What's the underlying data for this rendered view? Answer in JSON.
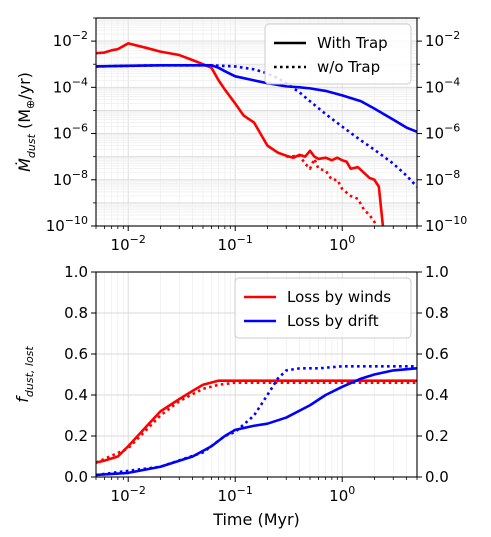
{
  "chart_data": [
    {
      "type": "line",
      "ylabel_main": "Ṁ",
      "ylabel_sub": "dust",
      "ylabel_unit": " (M",
      "ylabel_unit_sub": "⊕",
      "ylabel_tail": "/yr)",
      "xlabel": "",
      "x_scale": "log",
      "y_scale": "log",
      "xlim": [
        0.005,
        5
      ],
      "ylim": [
        1e-10,
        0.1
      ],
      "x_ticks": [
        {
          "value": 0.01,
          "base": "10",
          "exp": "−2"
        },
        {
          "value": 0.1,
          "base": "10",
          "exp": "−1"
        },
        {
          "value": 1,
          "base": "10",
          "exp": "0"
        }
      ],
      "y_ticks": [
        {
          "value": 0.01,
          "base": "10",
          "exp": "−2"
        },
        {
          "value": 0.0001,
          "base": "10",
          "exp": "−4"
        },
        {
          "value": 1e-06,
          "base": "10",
          "exp": "−6"
        },
        {
          "value": 1e-08,
          "base": "10",
          "exp": "−8"
        },
        {
          "value": 1e-10,
          "base": "10",
          "exp": "−10"
        }
      ],
      "grid": true,
      "legend_position": "top-right",
      "legend": [
        {
          "label": "With Trap",
          "style": "solid",
          "color": "#000000"
        },
        {
          "label": "w/o Trap",
          "style": "dotted",
          "color": "#000000"
        }
      ],
      "series": [
        {
          "color": "#ff0000",
          "style": "solid",
          "points": [
            [
              0.005,
              0.003
            ],
            [
              0.006,
              0.0032
            ],
            [
              0.007,
              0.004
            ],
            [
              0.008,
              0.0045
            ],
            [
              0.01,
              0.008
            ],
            [
              0.015,
              0.005
            ],
            [
              0.02,
              0.0035
            ],
            [
              0.03,
              0.0025
            ],
            [
              0.04,
              0.0015
            ],
            [
              0.05,
              0.001
            ],
            [
              0.06,
              0.0007
            ],
            [
              0.07,
              0.0002
            ],
            [
              0.08,
              8e-05
            ],
            [
              0.1,
              2e-05
            ],
            [
              0.12,
              6e-06
            ],
            [
              0.15,
              3e-06
            ],
            [
              0.2,
              3e-07
            ],
            [
              0.25,
              1.5e-07
            ],
            [
              0.3,
              1.1e-07
            ],
            [
              0.35,
              9e-08
            ],
            [
              0.4,
              1.2e-07
            ],
            [
              0.45,
              1e-07
            ],
            [
              0.5,
              1.8e-07
            ],
            [
              0.55,
              1e-07
            ],
            [
              0.6,
              8e-08
            ],
            [
              0.7,
              9e-08
            ],
            [
              0.8,
              7e-08
            ],
            [
              0.9,
              9e-08
            ],
            [
              1.0,
              7e-08
            ],
            [
              1.1,
              6e-08
            ],
            [
              1.2,
              3e-08
            ],
            [
              1.4,
              3.5e-08
            ],
            [
              1.6,
              2e-08
            ],
            [
              1.8,
              1.2e-08
            ],
            [
              2.0,
              1e-08
            ],
            [
              2.2,
              5e-09
            ],
            [
              2.4,
              1e-10
            ]
          ]
        },
        {
          "color": "#ff0000",
          "style": "dotted",
          "points": [
            [
              0.3,
              1e-07
            ],
            [
              0.4,
              1.1e-07
            ],
            [
              0.45,
              5e-08
            ],
            [
              0.5,
              3e-08
            ],
            [
              0.55,
              8e-08
            ],
            [
              0.6,
              3e-08
            ],
            [
              0.7,
              2.5e-08
            ],
            [
              0.8,
              1e-08
            ],
            [
              0.9,
              1e-08
            ],
            [
              1.0,
              4e-09
            ],
            [
              1.2,
              2e-09
            ],
            [
              1.4,
              1.5e-09
            ],
            [
              1.6,
              5e-10
            ],
            [
              1.8,
              3e-10
            ],
            [
              2.0,
              1.5e-10
            ],
            [
              2.1,
              1e-10
            ]
          ]
        },
        {
          "color": "#0000ff",
          "style": "solid",
          "points": [
            [
              0.005,
              0.0008
            ],
            [
              0.01,
              0.00085
            ],
            [
              0.02,
              0.0009
            ],
            [
              0.04,
              0.0009
            ],
            [
              0.06,
              0.0009
            ],
            [
              0.07,
              0.0007
            ],
            [
              0.08,
              0.0005
            ],
            [
              0.1,
              0.0003
            ],
            [
              0.15,
              0.0002
            ],
            [
              0.2,
              0.00015
            ],
            [
              0.3,
              0.00011
            ],
            [
              0.4,
              0.0001
            ],
            [
              0.5,
              9e-05
            ],
            [
              0.7,
              7e-05
            ],
            [
              1.0,
              4.5e-05
            ],
            [
              1.5,
              2.5e-05
            ],
            [
              2.0,
              1.2e-05
            ],
            [
              3.0,
              4e-06
            ],
            [
              4.0,
              1.8e-06
            ],
            [
              5.0,
              1.2e-06
            ]
          ]
        },
        {
          "color": "#0000ff",
          "style": "dotted",
          "points": [
            [
              0.005,
              0.0008
            ],
            [
              0.02,
              0.0009
            ],
            [
              0.06,
              0.0009
            ],
            [
              0.1,
              0.0008
            ],
            [
              0.15,
              0.0006
            ],
            [
              0.2,
              0.0004
            ],
            [
              0.25,
              0.00025
            ],
            [
              0.3,
              0.00015
            ],
            [
              0.4,
              6e-05
            ],
            [
              0.5,
              2.5e-05
            ],
            [
              0.7,
              7e-06
            ],
            [
              1.0,
              2e-06
            ],
            [
              1.5,
              5e-07
            ],
            [
              2.0,
              2e-07
            ],
            [
              3.0,
              5e-08
            ],
            [
              4.0,
              1.5e-08
            ],
            [
              5.0,
              5e-09
            ]
          ]
        }
      ]
    },
    {
      "type": "line",
      "ylabel_main": "f",
      "ylabel_sub": "dust, lost",
      "xlabel": "Time (Myr)",
      "x_scale": "log",
      "y_scale": "linear",
      "xlim": [
        0.005,
        5
      ],
      "ylim": [
        0,
        1
      ],
      "x_ticks": [
        {
          "value": 0.01,
          "base": "10",
          "exp": "−2"
        },
        {
          "value": 0.1,
          "base": "10",
          "exp": "−1"
        },
        {
          "value": 1,
          "base": "10",
          "exp": "0"
        }
      ],
      "y_ticks": [
        {
          "value": 0.0,
          "label": "0.0"
        },
        {
          "value": 0.2,
          "label": "0.2"
        },
        {
          "value": 0.4,
          "label": "0.4"
        },
        {
          "value": 0.6,
          "label": "0.6"
        },
        {
          "value": 0.8,
          "label": "0.8"
        },
        {
          "value": 1.0,
          "label": "1.0"
        }
      ],
      "grid": true,
      "legend_position": "top-right",
      "legend": [
        {
          "label": "Loss by winds",
          "style": "solid",
          "color": "#ff0000"
        },
        {
          "label": "Loss by drift",
          "style": "solid",
          "color": "#0000ff"
        }
      ],
      "series": [
        {
          "color": "#ff0000",
          "style": "solid",
          "points": [
            [
              0.005,
              0.07
            ],
            [
              0.006,
              0.08
            ],
            [
              0.008,
              0.1
            ],
            [
              0.01,
              0.15
            ],
            [
              0.015,
              0.25
            ],
            [
              0.02,
              0.32
            ],
            [
              0.03,
              0.38
            ],
            [
              0.04,
              0.42
            ],
            [
              0.05,
              0.45
            ],
            [
              0.07,
              0.47
            ],
            [
              0.1,
              0.47
            ],
            [
              0.2,
              0.47
            ],
            [
              0.5,
              0.47
            ],
            [
              1.0,
              0.47
            ],
            [
              2.0,
              0.47
            ],
            [
              5.0,
              0.47
            ]
          ]
        },
        {
          "color": "#ff0000",
          "style": "dotted",
          "points": [
            [
              0.005,
              0.07
            ],
            [
              0.01,
              0.14
            ],
            [
              0.02,
              0.3
            ],
            [
              0.03,
              0.37
            ],
            [
              0.05,
              0.43
            ],
            [
              0.07,
              0.45
            ],
            [
              0.1,
              0.46
            ],
            [
              0.3,
              0.46
            ],
            [
              1.0,
              0.46
            ],
            [
              5.0,
              0.46
            ]
          ]
        },
        {
          "color": "#0000ff",
          "style": "solid",
          "points": [
            [
              0.005,
              0.01
            ],
            [
              0.01,
              0.02
            ],
            [
              0.02,
              0.05
            ],
            [
              0.04,
              0.1
            ],
            [
              0.06,
              0.15
            ],
            [
              0.08,
              0.2
            ],
            [
              0.1,
              0.23
            ],
            [
              0.15,
              0.25
            ],
            [
              0.2,
              0.26
            ],
            [
              0.3,
              0.29
            ],
            [
              0.5,
              0.35
            ],
            [
              0.7,
              0.4
            ],
            [
              1.0,
              0.44
            ],
            [
              1.5,
              0.48
            ],
            [
              2.0,
              0.5
            ],
            [
              3.0,
              0.52
            ],
            [
              5.0,
              0.53
            ]
          ]
        },
        {
          "color": "#0000ff",
          "style": "dotted",
          "points": [
            [
              0.005,
              0.01
            ],
            [
              0.02,
              0.05
            ],
            [
              0.05,
              0.12
            ],
            [
              0.08,
              0.2
            ],
            [
              0.1,
              0.22
            ],
            [
              0.15,
              0.3
            ],
            [
              0.2,
              0.4
            ],
            [
              0.25,
              0.48
            ],
            [
              0.3,
              0.52
            ],
            [
              0.4,
              0.53
            ],
            [
              0.6,
              0.53
            ],
            [
              1.0,
              0.54
            ],
            [
              2.0,
              0.54
            ],
            [
              5.0,
              0.54
            ]
          ]
        }
      ]
    }
  ]
}
